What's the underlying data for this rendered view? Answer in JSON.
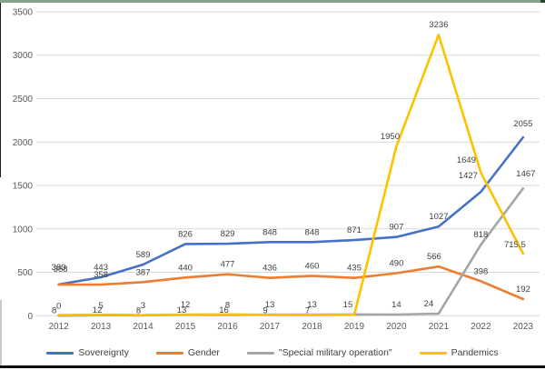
{
  "window": {
    "top_edge_color": "#87a28c",
    "top_edge_corner_color": "#27402b",
    "left_edge_color": "#1a1a1a",
    "left_edge_low_color": "#c9c9c9",
    "bottom_edge_color": "#0d0d0d"
  },
  "chart_data": {
    "type": "line",
    "title": "",
    "xlabel": "",
    "ylabel": "",
    "categories": [
      "2012",
      "2013",
      "2014",
      "2015",
      "2016",
      "2017",
      "2018",
      "2019",
      "2020",
      "2021",
      "2022",
      "2023"
    ],
    "ylim": [
      0,
      3500
    ],
    "ytick_step": 500,
    "yticks": [
      0,
      500,
      1000,
      1500,
      2000,
      2500,
      3000,
      3500
    ],
    "grid": true,
    "legend_position": "bottom",
    "axis_label_color": "#595959",
    "data_label_color": "#404040",
    "gridline_color": "#d9d9d9",
    "series": [
      {
        "name": "Sovereignty",
        "color": "#4472C4",
        "values": [
          360,
          443,
          589,
          826,
          829,
          848,
          848,
          871,
          907,
          1027,
          1427,
          2055
        ],
        "labels": [
          "360",
          "443",
          "589",
          "826",
          "829",
          "848",
          "848",
          "871",
          "907",
          "1027",
          "1427",
          "2055"
        ]
      },
      {
        "name": "Gender",
        "color": "#ED7D31",
        "values": [
          358,
          358,
          387,
          440,
          477,
          436,
          460,
          435,
          490,
          566,
          398,
          192
        ],
        "labels": [
          "358",
          "358",
          "387",
          "440",
          "477",
          "436",
          "460",
          "435",
          "490",
          "566",
          "398",
          "192"
        ]
      },
      {
        "name": "\"Special military operation\"",
        "color": "#A5A5A5",
        "values": [
          0,
          5,
          3,
          12,
          8,
          13,
          13,
          15,
          14,
          24,
          818,
          1467
        ],
        "labels": [
          "0",
          "5",
          "3",
          "12",
          "8",
          "13",
          "13",
          "15",
          "14",
          "24",
          "818",
          "1467"
        ]
      },
      {
        "name": "Pandemics",
        "color": "#FFC000",
        "values": [
          8,
          12,
          8,
          13,
          16,
          9,
          7,
          12,
          1950,
          3236,
          1649,
          715.5
        ],
        "labels": [
          "8",
          "12",
          "8",
          "13",
          "16",
          "9",
          "7",
          "",
          "1950",
          "3236",
          "1649",
          "715.5"
        ]
      }
    ],
    "label_offsets": {
      "0-0": [
        0,
        -8
      ],
      "1-0": [
        2,
        -6
      ],
      "0-10": [
        -14,
        -7
      ],
      "0-11": [
        0,
        -4
      ],
      "1-9": [
        -5,
        0
      ],
      "2-7": [
        -7,
        0
      ],
      "2-9": [
        -11,
        0
      ],
      "2-11": [
        3,
        -5
      ],
      "3-0": [
        -5,
        6
      ],
      "3-1": [
        -4,
        6
      ],
      "3-2": [
        -5,
        6
      ],
      "3-3": [
        -4,
        6
      ],
      "3-4": [
        -4,
        6
      ],
      "3-5": [
        -5,
        6
      ],
      "3-6": [
        -5,
        6
      ],
      "3-8": [
        -7,
        0
      ],
      "3-10": [
        -16,
        -3
      ],
      "3-11": [
        -9,
        1
      ]
    }
  }
}
